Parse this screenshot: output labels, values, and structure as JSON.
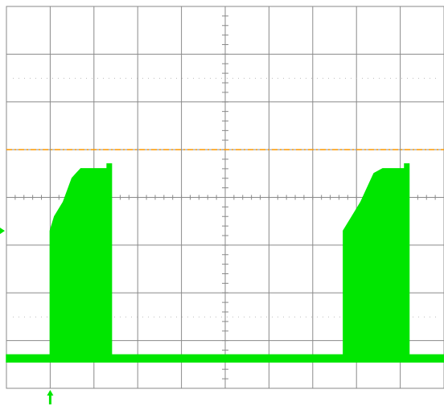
{
  "chart_data": {
    "type": "line",
    "title": "",
    "xlabel": "",
    "ylabel": "",
    "grid": true,
    "grid_divisions": {
      "x": 10,
      "y": 8
    },
    "xlim": [
      0,
      10
    ],
    "ylim": [
      -4,
      4
    ],
    "colors": {
      "background": "#ffffff",
      "grid": "#8a8a8a",
      "trace": "#00e600",
      "trigger_level": "#ff9900"
    },
    "trigger_level": 1.0,
    "ground_marker_level": -0.7,
    "trigger_time": 1.0,
    "series": [
      {
        "envelope_top": {
          "x": [
            0,
            1.0,
            1.0,
            1.1,
            1.3,
            1.5,
            1.6,
            1.7,
            2.0,
            2.3,
            2.3,
            2.4,
            2.4,
            7.7,
            7.7,
            7.9,
            8.1,
            8.3,
            8.4,
            8.6,
            9.0,
            9.1,
            9.1,
            9.2,
            9.2,
            10
          ],
          "y": [
            -3.3,
            -3.3,
            -0.7,
            -0.4,
            -0.1,
            0.4,
            0.5,
            0.6,
            0.6,
            0.6,
            0.7,
            0.7,
            -3.3,
            -3.3,
            -0.7,
            -0.4,
            -0.1,
            0.3,
            0.5,
            0.6,
            0.6,
            0.6,
            0.7,
            0.7,
            -3.3,
            -3.3
          ]
        },
        "envelope_bottom": {
          "x": [
            0,
            10
          ],
          "y": [
            -3.45,
            -3.45
          ]
        }
      }
    ]
  },
  "markers": {
    "level_marker_icon": "triangle-right",
    "trigger_marker_icon": "arrow-up"
  }
}
